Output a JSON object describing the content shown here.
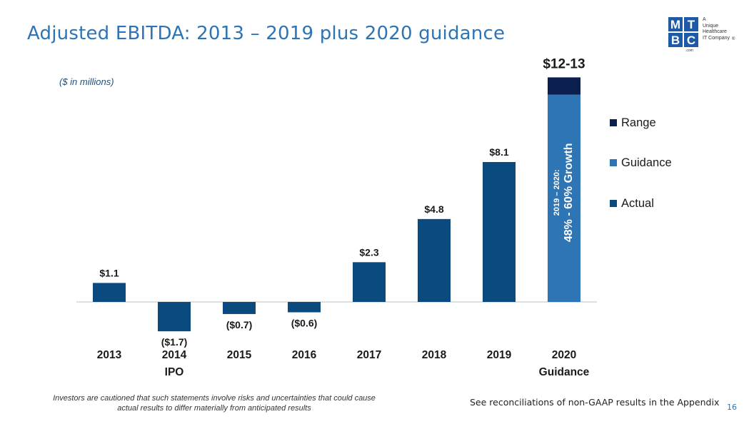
{
  "slide": {
    "title": "Adjusted EBITDA: 2013 – 2019 plus 2020 guidance",
    "unit_note": "($ in millions)",
    "footer_left": "Investors are cautioned that such statements involve risks and uncertainties that could cause actual results to differ materially from anticipated results",
    "footer_right": "See reconciliations of non-GAAP results in the Appendix",
    "page_number": "16"
  },
  "logo": {
    "letters": [
      "M",
      "T",
      "B",
      "C"
    ],
    "tagline": "A\nUnique\nHealthcare\nIT Company",
    "registered": "®",
    "suffix": ".com"
  },
  "chart_data": {
    "type": "bar",
    "categories": [
      "2013",
      "2014",
      "2015",
      "2016",
      "2017",
      "2018",
      "2019",
      "2020"
    ],
    "category_sublabels": [
      "",
      "IPO",
      "",
      "",
      "",
      "",
      "",
      "Guidance"
    ],
    "values": [
      1.1,
      -1.7,
      -0.7,
      -0.6,
      2.3,
      4.8,
      8.1,
      12.0
    ],
    "range_top": 13.0,
    "data_labels": [
      "$1.1",
      "($1.7)",
      "($0.7)",
      "($0.6)",
      "$2.3",
      "$4.8",
      "$8.1",
      "$12-13"
    ],
    "series": [
      {
        "name": "Range",
        "color": "#0b1f4f"
      },
      {
        "name": "Guidance",
        "color": "#2e75b6"
      },
      {
        "name": "Actual",
        "color": "#0a4a7f"
      }
    ],
    "guidance_annotation_line1": "2019 – 2020:",
    "guidance_annotation_line2": "48% - 60% Growth",
    "legend_position": "right",
    "ylim": [
      -1.7,
      13
    ],
    "grid": false
  }
}
